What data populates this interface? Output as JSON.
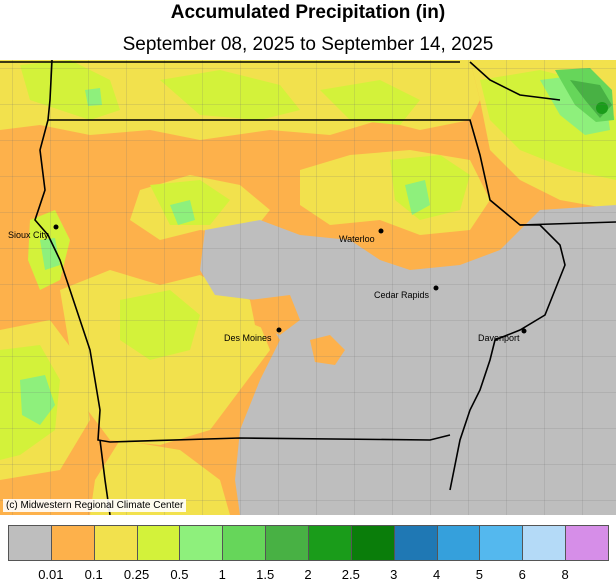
{
  "title": "Accumulated Precipitation (in)",
  "subtitle": "September 08, 2025 to September 14, 2025",
  "credit": "(c) Midwestern Regional Climate Center",
  "cities": [
    {
      "name": "Sioux City"
    },
    {
      "name": "Waterloo"
    },
    {
      "name": "Cedar Rapids"
    },
    {
      "name": "Des Moines"
    },
    {
      "name": "Davenport"
    }
  ],
  "legend": {
    "colors": [
      "#bebebe",
      "#fdb14b",
      "#f2e14d",
      "#d3f23a",
      "#8ef07c",
      "#66d65a",
      "#48b144",
      "#1a9c1a",
      "#0a7d0a",
      "#1f78b4",
      "#35a0dc",
      "#54b8ee",
      "#b4daf7",
      "#d68ee8"
    ],
    "labels": [
      "0.01",
      "0.1",
      "0.25",
      "0.5",
      "1",
      "1.5",
      "2",
      "2.5",
      "3",
      "4",
      "5",
      "6",
      "8"
    ]
  }
}
